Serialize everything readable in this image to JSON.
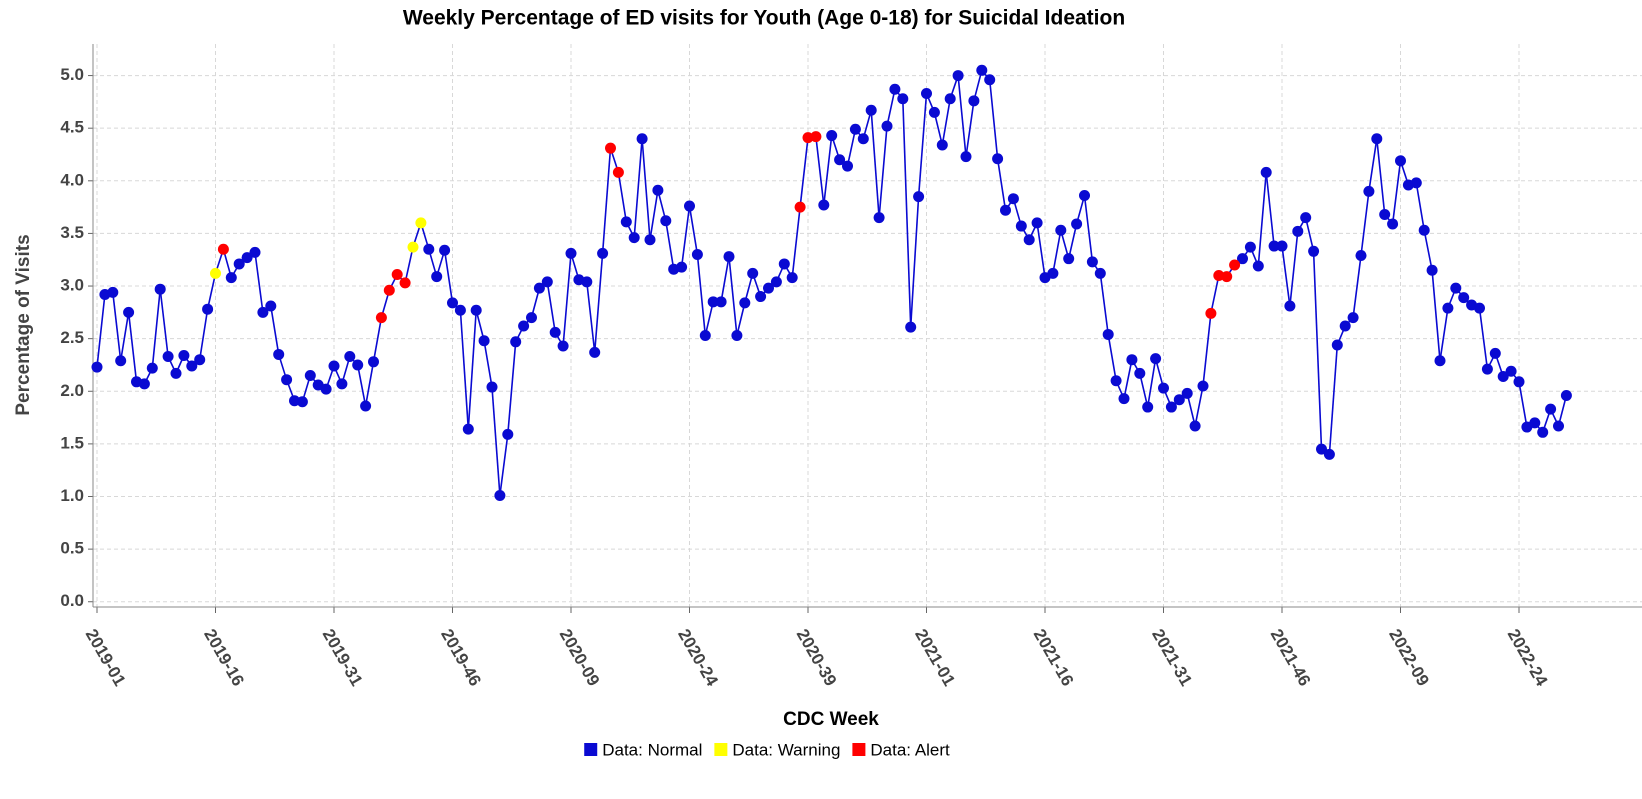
{
  "chart_data": {
    "type": "line",
    "title": "Weekly Percentage of ED visits for Youth (Age 0-18) for Suicidal Ideation",
    "xlabel": "CDC Week",
    "ylabel": "Percentage of Visits",
    "categories": [
      "2019-01",
      null,
      null,
      null,
      null,
      null,
      null,
      null,
      null,
      null,
      null,
      null,
      null,
      null,
      null,
      "2019-16",
      null,
      null,
      null,
      null,
      null,
      null,
      null,
      null,
      null,
      null,
      null,
      null,
      null,
      null,
      "2019-31",
      null,
      null,
      null,
      null,
      null,
      null,
      null,
      null,
      null,
      null,
      null,
      null,
      null,
      null,
      "2019-46",
      null,
      null,
      null,
      null,
      null,
      null,
      null,
      null,
      null,
      null,
      null,
      null,
      null,
      null,
      "2020-09",
      null,
      null,
      null,
      null,
      null,
      null,
      null,
      null,
      null,
      null,
      null,
      null,
      null,
      null,
      "2020-24",
      null,
      null,
      null,
      null,
      null,
      null,
      null,
      null,
      null,
      null,
      null,
      null,
      null,
      null,
      "2020-39",
      null,
      null,
      null,
      null,
      null,
      null,
      null,
      null,
      null,
      null,
      null,
      null,
      null,
      null,
      "2021-01",
      null,
      null,
      null,
      null,
      null,
      null,
      null,
      null,
      null,
      null,
      null,
      null,
      null,
      null,
      "2021-16",
      null,
      null,
      null,
      null,
      null,
      null,
      null,
      null,
      null,
      null,
      null,
      null,
      null,
      null,
      "2021-31",
      null,
      null,
      null,
      null,
      null,
      null,
      null,
      null,
      null,
      null,
      null,
      null,
      null,
      null,
      "2021-46",
      null,
      null,
      null,
      null,
      null,
      null,
      null,
      null,
      null,
      null,
      null,
      null,
      null,
      null,
      "2022-09",
      null,
      null,
      null,
      null,
      null,
      null,
      null,
      null,
      null,
      null,
      null,
      null,
      null,
      null,
      "2022-24",
      null,
      null,
      null,
      null,
      null,
      null
    ],
    "series": [
      {
        "name": "Data: Normal",
        "color": "#0a0ad2",
        "values": [
          2.23,
          2.92,
          2.94,
          2.29,
          2.75,
          2.09,
          2.07,
          2.22,
          2.97,
          2.33,
          2.17,
          2.34,
          2.24,
          2.3,
          2.78,
          null,
          null,
          3.08,
          3.21,
          3.27,
          3.32,
          2.75,
          2.81,
          2.35,
          2.11,
          1.91,
          1.9,
          2.15,
          2.06,
          2.02,
          2.24,
          2.07,
          2.33,
          2.25,
          1.86,
          2.28,
          null,
          null,
          null,
          null,
          null,
          null,
          3.35,
          3.09,
          3.34,
          2.84,
          2.77,
          1.64,
          2.77,
          2.48,
          2.04,
          1.01,
          1.59,
          2.47,
          2.62,
          2.7,
          2.98,
          3.04,
          2.56,
          2.43,
          3.31,
          3.06,
          3.04,
          2.37,
          3.31,
          null,
          null,
          3.61,
          3.46,
          4.4,
          3.44,
          3.91,
          3.62,
          3.16,
          3.18,
          3.76,
          3.3,
          2.53,
          2.85,
          2.85,
          3.28,
          2.53,
          2.84,
          3.12,
          2.9,
          2.98,
          3.04,
          3.21,
          3.08,
          null,
          null,
          null,
          3.77,
          4.43,
          4.2,
          4.14,
          4.49,
          4.4,
          4.67,
          3.65,
          4.52,
          4.87,
          4.78,
          2.61,
          3.85,
          4.83,
          4.65,
          4.34,
          4.78,
          5.0,
          4.23,
          4.76,
          5.05,
          4.96,
          4.21,
          3.72,
          3.83,
          3.57,
          3.44,
          3.6,
          3.08,
          3.12,
          3.53,
          3.26,
          3.59,
          3.86,
          3.23,
          3.12,
          2.54,
          2.1,
          1.93,
          2.3,
          2.17,
          1.85,
          2.31,
          2.03,
          1.85,
          1.92,
          1.98,
          1.67,
          2.05,
          null,
          null,
          null,
          null,
          3.26,
          3.37,
          3.19,
          4.08,
          3.38,
          3.38,
          2.81,
          3.52,
          3.65,
          3.33,
          1.45,
          1.4,
          2.44,
          2.62,
          2.7,
          3.29,
          3.9,
          4.4,
          3.68,
          3.59,
          4.19,
          3.96,
          3.98,
          3.53,
          3.15,
          2.29,
          2.79,
          2.98,
          2.89,
          2.82,
          2.79,
          2.21,
          2.36,
          2.14,
          2.19,
          2.09,
          1.66,
          1.7,
          1.61,
          1.83,
          1.67,
          1.96
        ]
      },
      {
        "name": "Data: Warning",
        "color": "#ffff00",
        "values": [
          null,
          null,
          null,
          null,
          null,
          null,
          null,
          null,
          null,
          null,
          null,
          null,
          null,
          null,
          null,
          3.12,
          null,
          null,
          null,
          null,
          null,
          null,
          null,
          null,
          null,
          null,
          null,
          null,
          null,
          null,
          null,
          null,
          null,
          null,
          null,
          null,
          null,
          null,
          null,
          null,
          3.37,
          3.6,
          null,
          null,
          null,
          null,
          null,
          null,
          null,
          null,
          null,
          null,
          null,
          null,
          null,
          null,
          null,
          null,
          null,
          null,
          null,
          null,
          null,
          null,
          null,
          null,
          null,
          null,
          null,
          null,
          null,
          null,
          null,
          null,
          null,
          null,
          null,
          null,
          null,
          null,
          null,
          null,
          null,
          null,
          null,
          null,
          null,
          null,
          null,
          null,
          null,
          null,
          null,
          null,
          null,
          null,
          null,
          null,
          null,
          null,
          null,
          null,
          null,
          null,
          null,
          null,
          null,
          null,
          null,
          null,
          null,
          null,
          null,
          null,
          null,
          null,
          null,
          null,
          null,
          null,
          null,
          null,
          null,
          null,
          null,
          null,
          null,
          null,
          null,
          null,
          null,
          null,
          null,
          null,
          null,
          null,
          null,
          null,
          null,
          null,
          null,
          null,
          null,
          null,
          null,
          null,
          null,
          null,
          null,
          null,
          null,
          null,
          null,
          null,
          null,
          null,
          null,
          null,
          null,
          null,
          null,
          null,
          null,
          null,
          null,
          null,
          null,
          null,
          null,
          null,
          null,
          null,
          null,
          null,
          null,
          null,
          null,
          null,
          null,
          null,
          null,
          null,
          null,
          null,
          null,
          null,
          null
        ]
      },
      {
        "name": "Data: Alert",
        "color": "#ff0000",
        "values": [
          null,
          null,
          null,
          null,
          null,
          null,
          null,
          null,
          null,
          null,
          null,
          null,
          null,
          null,
          null,
          null,
          3.35,
          null,
          null,
          null,
          null,
          null,
          null,
          null,
          null,
          null,
          null,
          null,
          null,
          null,
          null,
          null,
          null,
          null,
          null,
          null,
          2.7,
          2.96,
          3.11,
          3.03,
          null,
          null,
          null,
          null,
          null,
          null,
          null,
          null,
          null,
          null,
          null,
          null,
          null,
          null,
          null,
          null,
          null,
          null,
          null,
          null,
          null,
          null,
          null,
          null,
          null,
          4.31,
          4.08,
          null,
          null,
          null,
          null,
          null,
          null,
          null,
          null,
          null,
          null,
          null,
          null,
          null,
          null,
          null,
          null,
          null,
          null,
          null,
          null,
          null,
          null,
          3.75,
          4.41,
          4.42,
          null,
          null,
          null,
          null,
          null,
          null,
          null,
          null,
          null,
          null,
          null,
          null,
          null,
          null,
          null,
          null,
          null,
          null,
          null,
          null,
          null,
          null,
          null,
          null,
          null,
          null,
          null,
          null,
          null,
          null,
          null,
          null,
          null,
          null,
          null,
          null,
          null,
          null,
          null,
          null,
          null,
          null,
          null,
          null,
          null,
          null,
          null,
          null,
          null,
          2.74,
          3.1,
          3.09,
          3.2,
          null,
          null,
          null,
          null,
          null,
          null,
          null,
          null,
          null,
          null,
          null,
          null,
          null,
          null,
          null,
          null,
          null,
          null,
          null,
          null,
          null,
          null,
          null,
          null,
          null,
          null,
          null,
          null,
          null,
          null,
          null,
          null,
          null,
          null,
          null,
          null,
          null,
          null,
          null,
          null,
          null,
          null
        ]
      }
    ],
    "ylim": [
      -0.05,
      5.3
    ],
    "yticks": [
      {
        "value": 0,
        "label": "0.0"
      },
      0.5,
      {
        "value": 1,
        "label": "1.0"
      },
      1.5,
      {
        "value": 2,
        "label": "2.0"
      },
      2.5,
      {
        "value": 3,
        "label": "3.0"
      },
      3.5,
      {
        "value": 4,
        "label": "4.0"
      },
      4.5,
      {
        "value": 5,
        "label": "5.0"
      }
    ],
    "grid": true,
    "legend": "bottom"
  }
}
